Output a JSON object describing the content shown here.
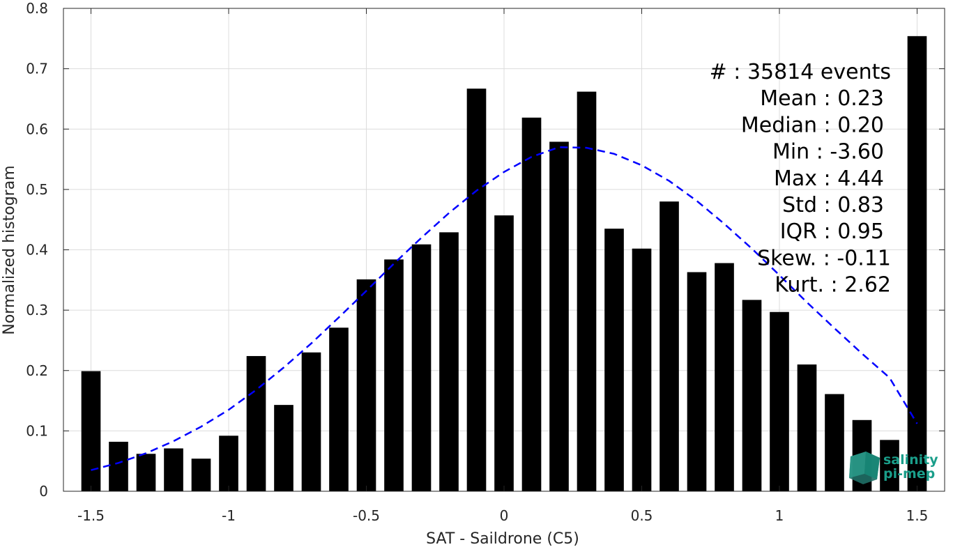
{
  "chart_data": {
    "type": "bar",
    "xlabel": "SAT - Saildrone (C5)",
    "ylabel": "Normalized histogram",
    "xlim": [
      -1.6,
      1.6
    ],
    "ylim": [
      0,
      0.8
    ],
    "xticks": [
      -1.5,
      -1,
      -0.5,
      0,
      0.5,
      1,
      1.5
    ],
    "xtick_labels": [
      "-1.5",
      "-1",
      "-0.5",
      "0",
      "0.5",
      "1",
      "1.5"
    ],
    "yticks": [
      0,
      0.1,
      0.2,
      0.3,
      0.4,
      0.5,
      0.6,
      0.7,
      0.8
    ],
    "ytick_labels": [
      "0",
      "0.1",
      "0.2",
      "0.3",
      "0.4",
      "0.5",
      "0.6",
      "0.7",
      "0.8"
    ],
    "grid": true,
    "bar_width": 0.07,
    "bar_color": "#000000",
    "bars": {
      "x": [
        -1.5,
        -1.4,
        -1.3,
        -1.2,
        -1.1,
        -1.0,
        -0.9,
        -0.8,
        -0.7,
        -0.6,
        -0.5,
        -0.4,
        -0.3,
        -0.2,
        -0.1,
        0.0,
        0.1,
        0.2,
        0.3,
        0.4,
        0.5,
        0.6,
        0.7,
        0.8,
        0.9,
        1.0,
        1.1,
        1.2,
        1.3,
        1.4,
        1.5
      ],
      "values": [
        0.199,
        0.082,
        0.062,
        0.071,
        0.054,
        0.092,
        0.224,
        0.143,
        0.23,
        0.271,
        0.351,
        0.384,
        0.409,
        0.429,
        0.667,
        0.457,
        0.619,
        0.579,
        0.662,
        0.435,
        0.402,
        0.48,
        0.363,
        0.378,
        0.317,
        0.297,
        0.21,
        0.161,
        0.118,
        0.085,
        0.754
      ]
    },
    "fit_curve": {
      "style": "dashed",
      "color": "#0000ff",
      "x": [
        -1.5,
        -1.4,
        -1.3,
        -1.2,
        -1.1,
        -1.0,
        -0.9,
        -0.8,
        -0.7,
        -0.6,
        -0.5,
        -0.4,
        -0.3,
        -0.2,
        -0.1,
        0.0,
        0.1,
        0.2,
        0.3,
        0.4,
        0.5,
        0.6,
        0.7,
        0.8,
        0.9,
        1.0,
        1.1,
        1.2,
        1.3,
        1.4,
        1.5
      ],
      "y": [
        0.035,
        0.047,
        0.063,
        0.083,
        0.107,
        0.135,
        0.168,
        0.205,
        0.245,
        0.288,
        0.332,
        0.377,
        0.42,
        0.461,
        0.498,
        0.529,
        0.554,
        0.57,
        0.569,
        0.559,
        0.54,
        0.514,
        0.481,
        0.443,
        0.402,
        0.358,
        0.313,
        0.27,
        0.228,
        0.188,
        0.112
      ]
    },
    "annotations": [
      {
        "label": "#",
        "sep": " : ",
        "value": "35814 events"
      },
      {
        "label": "Mean",
        "sep": " : ",
        "value": "0.23"
      },
      {
        "label": "Median",
        "sep": " : ",
        "value": "0.20"
      },
      {
        "label": "Min",
        "sep": " : ",
        "value": "-3.60"
      },
      {
        "label": "Max",
        "sep": " : ",
        "value": "4.44"
      },
      {
        "label": "Std",
        "sep": " : ",
        "value": "0.83"
      },
      {
        "label": "IQR",
        "sep": " : ",
        "value": "0.95"
      },
      {
        "label": "Skew.",
        "sep": " : ",
        "value": "-0.11"
      },
      {
        "label": "Kurt.",
        "sep": " : ",
        "value": "2.62"
      }
    ]
  },
  "logo": {
    "line1": "salinity",
    "line2": "pi-mep",
    "color": "#1a9e8a"
  }
}
